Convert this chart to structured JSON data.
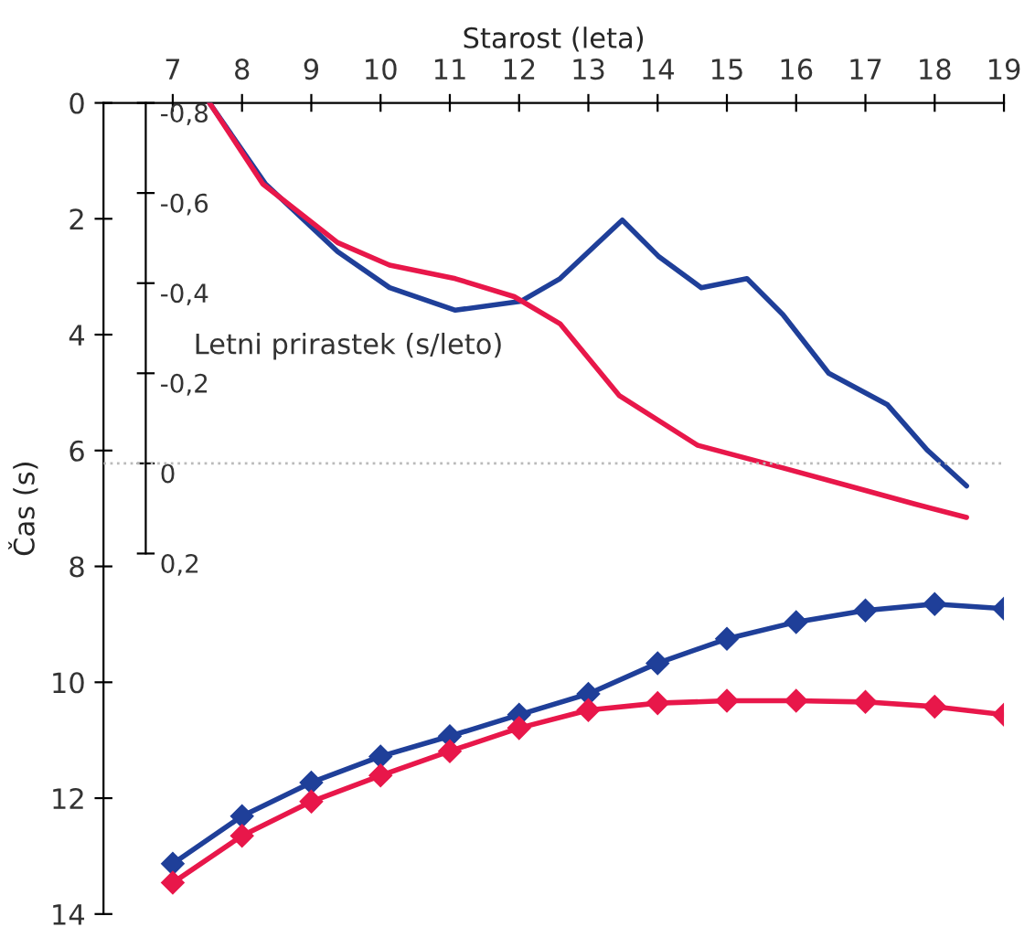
{
  "chart_data": {
    "type": "line",
    "xlabel": "Starost (leta)",
    "ylabel": "Čas (s)",
    "y2label": "Letni prirastek (s/leto)",
    "x": [
      7,
      8,
      9,
      10,
      11,
      12,
      13,
      14,
      15,
      16,
      17,
      18,
      19
    ],
    "xlim": [
      6,
      19
    ],
    "xticks": [
      7,
      8,
      9,
      10,
      11,
      12,
      13,
      14,
      15,
      16,
      17,
      18,
      19
    ],
    "ylim": [
      14,
      0
    ],
    "yticks": [
      0,
      2,
      4,
      6,
      8,
      10,
      12,
      14
    ],
    "y2lim": [
      1.0,
      -0.8
    ],
    "y2ticks": [
      {
        "value": -0.8,
        "label": "-0,8"
      },
      {
        "value": -0.6,
        "label": "-0,6"
      },
      {
        "value": -0.4,
        "label": "-0,4"
      },
      {
        "value": -0.2,
        "label": "-0,2"
      },
      {
        "value": 0,
        "label": "0"
      },
      {
        "value": 0.2,
        "label": "0,2"
      }
    ],
    "grid": false,
    "legend": false,
    "ref_lines": [
      {
        "axis": "y2",
        "value": 0,
        "color": "#bbbbbb",
        "line_style": "dotted"
      }
    ],
    "series": [
      {
        "color": "#1f3f99",
        "marker": "diamond",
        "values": [
          13.13,
          12.31,
          11.73,
          11.28,
          10.93,
          10.56,
          10.2,
          9.67,
          9.25,
          8.96,
          8.76,
          8.65,
          8.73
        ]
      },
      {
        "color": "#e8174a",
        "marker": "diamond",
        "values": [
          13.46,
          12.65,
          12.06,
          11.61,
          11.19,
          10.79,
          10.48,
          10.36,
          10.32,
          10.32,
          10.34,
          10.42,
          10.56
        ]
      },
      {
        "color": "#1f3f99",
        "marker": "none",
        "axis": "y2",
        "x": [
          7.53,
          8.34,
          9.38,
          10.13,
          11.08,
          12.03,
          12.59,
          13.49,
          14.01,
          14.63,
          15.29,
          15.81,
          16.47,
          17.32,
          17.89,
          18.46
        ],
        "values": [
          -0.8,
          -0.62,
          -0.47,
          -0.39,
          -0.34,
          -0.36,
          -0.41,
          -0.54,
          -0.46,
          -0.39,
          -0.41,
          -0.33,
          -0.2,
          -0.13,
          -0.03,
          0.05
        ]
      },
      {
        "color": "#e8174a",
        "marker": "none",
        "axis": "y2",
        "x": [
          7.53,
          8.3,
          9.38,
          10.13,
          11.08,
          11.93,
          12.59,
          13.45,
          14.58,
          15.81,
          16.76,
          17.71,
          18.46
        ],
        "values": [
          -0.8,
          -0.62,
          -0.49,
          -0.44,
          -0.41,
          -0.37,
          -0.31,
          -0.15,
          -0.04,
          0.01,
          0.05,
          0.09,
          0.12
        ]
      }
    ]
  }
}
